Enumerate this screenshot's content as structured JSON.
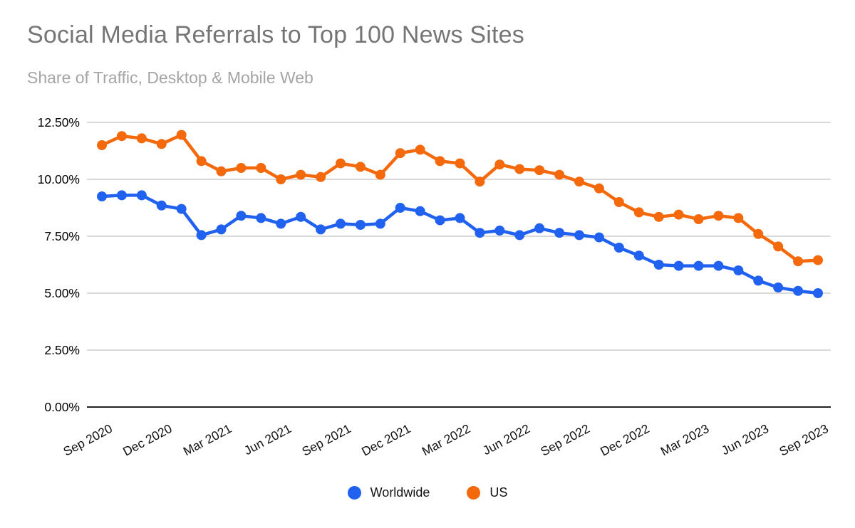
{
  "chart_data": {
    "type": "line",
    "title": "Social Media Referrals to Top 100 News Sites",
    "subtitle": "Share of Traffic, Desktop & Mobile Web",
    "x": [
      "Sep 2020",
      "Oct 2020",
      "Nov 2020",
      "Dec 2020",
      "Jan 2021",
      "Feb 2021",
      "Mar 2021",
      "Apr 2021",
      "May 2021",
      "Jun 2021",
      "Jul 2021",
      "Aug 2021",
      "Sep 2021",
      "Oct 2021",
      "Nov 2021",
      "Dec 2021",
      "Jan 2022",
      "Feb 2022",
      "Mar 2022",
      "Apr 2022",
      "May 2022",
      "Jun 2022",
      "Jul 2022",
      "Aug 2022",
      "Sep 2022",
      "Oct 2022",
      "Nov 2022",
      "Dec 2022",
      "Jan 2023",
      "Feb 2023",
      "Mar 2023",
      "Apr 2023",
      "May 2023",
      "Jun 2023",
      "Jul 2023",
      "Aug 2023",
      "Sep 2023"
    ],
    "x_tick_labels": [
      "Sep 2020",
      "Dec 2020",
      "Mar 2021",
      "Jun 2021",
      "Sep 2021",
      "Dec 2021",
      "Mar 2022",
      "Jun 2022",
      "Sep 2022",
      "Dec 2022",
      "Mar 2023",
      "Jun 2023",
      "Sep 2023"
    ],
    "x_tick_every": 3,
    "y_ticks": {
      "values": [
        0,
        2.5,
        5,
        7.5,
        10,
        12.5
      ],
      "labels": [
        "0.00%",
        "2.50%",
        "5.00%",
        "7.50%",
        "10.00%",
        "12.50%"
      ]
    },
    "ylim": [
      0,
      12.5
    ],
    "grid": "horizontal",
    "legend_position": "bottom",
    "series": [
      {
        "name": "Worldwide",
        "color": "#2161f0",
        "values": [
          9.25,
          9.3,
          9.3,
          8.85,
          8.7,
          7.55,
          7.8,
          8.4,
          8.3,
          8.05,
          8.35,
          7.8,
          8.05,
          8.0,
          8.05,
          8.75,
          8.6,
          8.2,
          8.3,
          7.65,
          7.75,
          7.55,
          7.85,
          7.65,
          7.55,
          7.45,
          7.0,
          6.65,
          6.25,
          6.2,
          6.2,
          6.2,
          6.0,
          5.55,
          5.25,
          5.1,
          5.0
        ]
      },
      {
        "name": "US",
        "color": "#f4690c",
        "values": [
          11.5,
          11.9,
          11.8,
          11.55,
          11.95,
          10.8,
          10.35,
          10.5,
          10.5,
          10.0,
          10.2,
          10.1,
          10.7,
          10.55,
          10.2,
          11.15,
          11.3,
          10.8,
          10.7,
          9.9,
          10.65,
          10.45,
          10.4,
          10.2,
          9.9,
          9.6,
          9.0,
          8.55,
          8.35,
          8.45,
          8.25,
          8.4,
          8.3,
          7.6,
          7.05,
          6.4,
          6.45
        ]
      }
    ]
  },
  "colors": {
    "title": "#757575",
    "subtitle": "#a5a5a5",
    "gridline": "#d9d9d9",
    "axis_baseline": "#222222",
    "tick_label": "#111111",
    "background": "#ffffff"
  }
}
